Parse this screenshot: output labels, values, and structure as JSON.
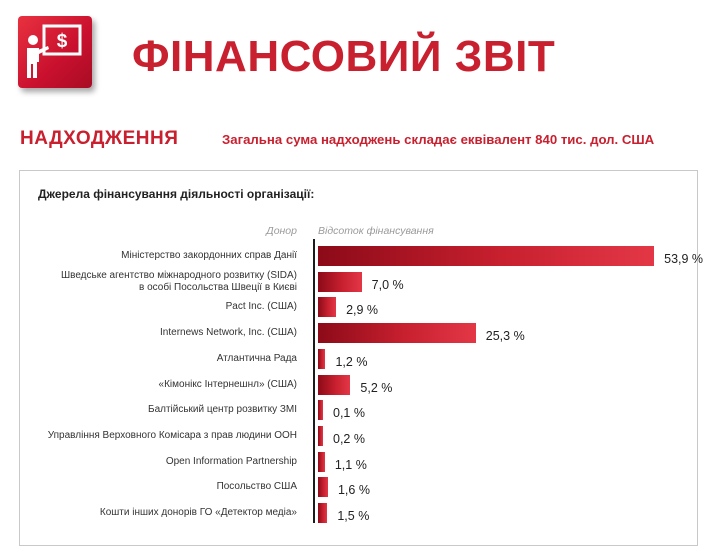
{
  "header": {
    "title": "ФІНАНСОВИЙ ЗВІТ",
    "logo_icon": "presentation-dollar-icon",
    "accent_color": "#c8202f"
  },
  "section": {
    "title": "НАДХОДЖЕННЯ",
    "subtitle": "Загальна сума надходжень складає еквівалент 840 тис. дол. США"
  },
  "chart_data": {
    "type": "bar",
    "orientation": "horizontal",
    "title": "Джерела фінансування діяльності організації:",
    "category_header": "Донор",
    "value_header": "Відсоток фінансування",
    "unit": "%",
    "categories": [
      [
        "Міністерство закордонних справ Данії"
      ],
      [
        "Шведське агентство міжнародного розвитку (SIDA)",
        "в особі Посольства Швеції в Києві"
      ],
      [
        "Pact Inc. (США)"
      ],
      [
        "Internews Network, Inc. (США)"
      ],
      [
        "Атлантична Рада"
      ],
      [
        "«Кімонікс Інтернешнл» (США)"
      ],
      [
        "Балтійський центр розвитку ЗМІ"
      ],
      [
        "Управління Верховного Комісара з прав людини ООН"
      ],
      [
        "Open Information Partnership"
      ],
      [
        "Посольство США"
      ],
      [
        "Кошти інших донорів ГО «Детектор медіа»"
      ]
    ],
    "values": [
      53.9,
      7.0,
      2.9,
      25.3,
      1.2,
      5.2,
      0.1,
      0.2,
      1.1,
      1.6,
      1.5
    ],
    "value_labels": [
      "53,9 %",
      "7,0 %",
      "2,9 %",
      "25,3 %",
      "1,2 %",
      "5,2 %",
      "0,1 %",
      "0,2 %",
      "1,1 %",
      "1,6 %",
      "1,5 %"
    ],
    "xlim": [
      0,
      55
    ],
    "grid": false,
    "bar_color": "#c8202f"
  }
}
